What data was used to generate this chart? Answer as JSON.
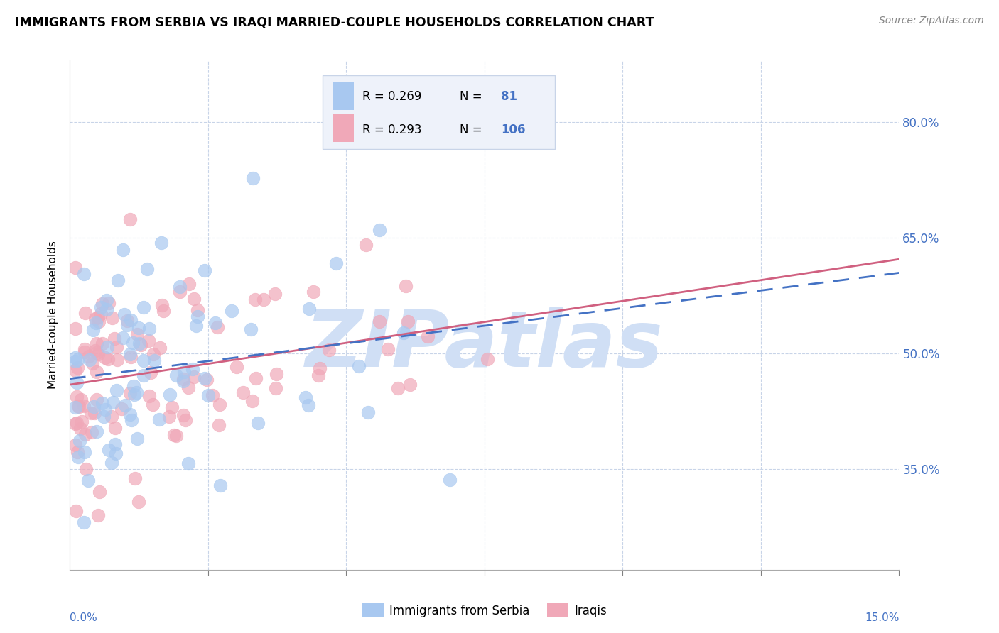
{
  "title": "IMMIGRANTS FROM SERBIA VS IRAQI MARRIED-COUPLE HOUSEHOLDS CORRELATION CHART",
  "source": "Source: ZipAtlas.com",
  "ylabel": "Married-couple Households",
  "yticks": [
    "80.0%",
    "65.0%",
    "50.0%",
    "35.0%"
  ],
  "ytick_vals": [
    0.8,
    0.65,
    0.5,
    0.35
  ],
  "xlim": [
    0.0,
    0.15
  ],
  "ylim": [
    0.22,
    0.88
  ],
  "serbia_color": "#a8c8f0",
  "iraq_color": "#f0a8b8",
  "serbia_trend_color": "#4472c4",
  "iraq_trend_color": "#d06080",
  "watermark": "ZIPatlas",
  "watermark_color": "#d0dff5",
  "background_color": "#ffffff",
  "grid_color": "#c8d4e8",
  "tick_color": "#4472c4",
  "legend_box_color": "#eef2fa",
  "legend_border_color": "#c8d4e8",
  "serbia_R": "0.269",
  "serbia_N": "81",
  "iraq_R": "0.293",
  "iraq_N": "106"
}
